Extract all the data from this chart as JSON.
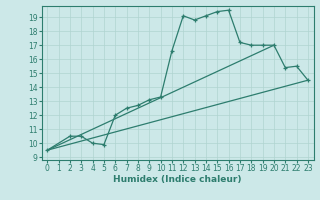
{
  "xlabel": "Humidex (Indice chaleur)",
  "bg_color": "#cce8e8",
  "line_color": "#2d7d6e",
  "grid_color": "#b0d4d0",
  "xlim": [
    -0.5,
    23.5
  ],
  "ylim": [
    8.8,
    19.8
  ],
  "yticks": [
    9,
    10,
    11,
    12,
    13,
    14,
    15,
    16,
    17,
    18,
    19
  ],
  "xticks": [
    0,
    1,
    2,
    3,
    4,
    5,
    6,
    7,
    8,
    9,
    10,
    11,
    12,
    13,
    14,
    15,
    16,
    17,
    18,
    19,
    20,
    21,
    22,
    23
  ],
  "curve1_x": [
    0,
    2,
    3,
    4,
    5,
    6,
    7,
    8,
    9,
    10,
    11,
    12,
    13,
    14,
    15,
    16,
    17,
    18,
    19,
    20,
    21,
    22,
    23
  ],
  "curve1_y": [
    9.5,
    10.5,
    10.5,
    10.0,
    9.9,
    12.0,
    12.5,
    12.7,
    13.1,
    13.3,
    16.6,
    19.1,
    18.8,
    19.1,
    19.4,
    19.5,
    17.2,
    17.0,
    17.0,
    17.0,
    15.4,
    15.5,
    14.5
  ],
  "line2_x": [
    0,
    23
  ],
  "line2_y": [
    9.5,
    14.5
  ],
  "line3_x": [
    0,
    20
  ],
  "line3_y": [
    9.5,
    17.0
  ],
  "tick_fontsize": 5.5,
  "xlabel_fontsize": 6.5
}
